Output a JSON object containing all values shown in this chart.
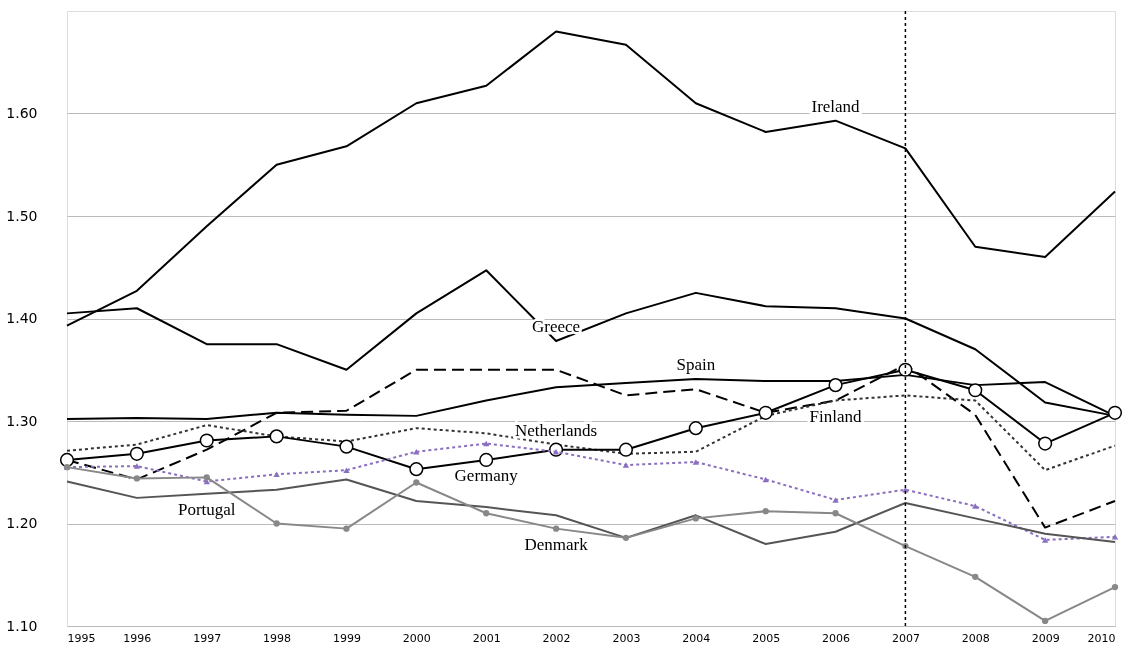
{
  "chart_data": {
    "type": "line",
    "x": [
      1995,
      1996,
      1997,
      1998,
      1999,
      2000,
      2001,
      2002,
      2003,
      2004,
      2005,
      2006,
      2007,
      2008,
      2009,
      2010
    ],
    "xlim": [
      1995,
      2010
    ],
    "xticks": [
      1995,
      1996,
      1997,
      1998,
      1999,
      2000,
      2001,
      2002,
      2003,
      2004,
      2005,
      2006,
      2007,
      2008,
      2009,
      2010
    ],
    "ylim": [
      1.1,
      1.7
    ],
    "yticks": [
      {
        "value": 1.1,
        "label": "1.10"
      },
      {
        "value": 1.2,
        "label": "1.20"
      },
      {
        "value": 1.3,
        "label": "1.30"
      },
      {
        "value": 1.4,
        "label": "1.40"
      },
      {
        "value": 1.5,
        "label": "1.50"
      },
      {
        "value": 1.6,
        "label": "1.60"
      }
    ],
    "grid": "y",
    "series": [
      {
        "name": "Ireland",
        "color": "#000000",
        "line_style": "solid",
        "marker": "none",
        "values": [
          1.393,
          1.427,
          1.49,
          1.55,
          1.568,
          1.61,
          1.627,
          1.68,
          1.667,
          1.61,
          1.582,
          1.593,
          1.566,
          1.47,
          1.46,
          1.524
        ]
      },
      {
        "name": "Greece",
        "color": "#000000",
        "line_style": "solid",
        "marker": "none",
        "values": [
          1.405,
          1.41,
          1.375,
          1.375,
          1.35,
          1.405,
          1.447,
          1.378,
          1.405,
          1.425,
          1.412,
          1.41,
          1.4,
          1.37,
          1.318,
          1.305
        ]
      },
      {
        "name": "Spain",
        "color": "#000000",
        "line_style": "solid",
        "marker": "none",
        "values": [
          1.302,
          1.303,
          1.302,
          1.308,
          1.306,
          1.305,
          1.32,
          1.333,
          1.337,
          1.341,
          1.339,
          1.339,
          1.345,
          1.335,
          1.338,
          1.305
        ]
      },
      {
        "name": "Finland",
        "color": "#000000",
        "line_style": "dashed",
        "marker": "none",
        "values": [
          1.262,
          1.243,
          1.272,
          1.308,
          1.31,
          1.35,
          1.35,
          1.35,
          1.325,
          1.331,
          1.308,
          1.32,
          1.355,
          1.306,
          1.196,
          1.222
        ]
      },
      {
        "name": "Netherlands",
        "color": "#333333",
        "line_style": "dotted",
        "marker": "none",
        "values": [
          1.271,
          1.277,
          1.296,
          1.285,
          1.28,
          1.293,
          1.288,
          1.277,
          1.268,
          1.27,
          1.305,
          1.32,
          1.325,
          1.32,
          1.252,
          1.276
        ]
      },
      {
        "name": "Germany",
        "color": "#000000",
        "line_style": "solid",
        "marker": "circle",
        "values": [
          1.262,
          1.268,
          1.281,
          1.285,
          1.275,
          1.253,
          1.262,
          1.272,
          1.272,
          1.293,
          1.308,
          1.335,
          1.35,
          1.33,
          1.278,
          1.308
        ]
      },
      {
        "color": "#8a6fc0",
        "line_style": "dotted",
        "marker": "triangle",
        "values": [
          1.255,
          1.256,
          1.241,
          1.248,
          1.252,
          1.27,
          1.278,
          1.27,
          1.257,
          1.26,
          1.243,
          1.223,
          1.233,
          1.217,
          1.184,
          1.187
        ]
      },
      {
        "name": "Portugal",
        "color": "#555555",
        "line_style": "solid",
        "marker": "none",
        "values": [
          1.241,
          1.225,
          1.229,
          1.233,
          1.243,
          1.222,
          1.216,
          1.208,
          1.186,
          1.208,
          1.18,
          1.192,
          1.22,
          1.205,
          1.19,
          1.182
        ]
      },
      {
        "name": "Denmark",
        "color": "#888888",
        "line_style": "solid",
        "marker": "circle",
        "values": [
          1.255,
          1.244,
          1.245,
          1.2,
          1.195,
          1.24,
          1.21,
          1.195,
          1.186,
          1.205,
          1.212,
          1.21,
          1.178,
          1.148,
          1.105,
          1.138
        ]
      }
    ],
    "ref_lines": [
      {
        "axis": "x",
        "value": 2007,
        "color": "#000000",
        "line_style": "dotted"
      }
    ]
  }
}
